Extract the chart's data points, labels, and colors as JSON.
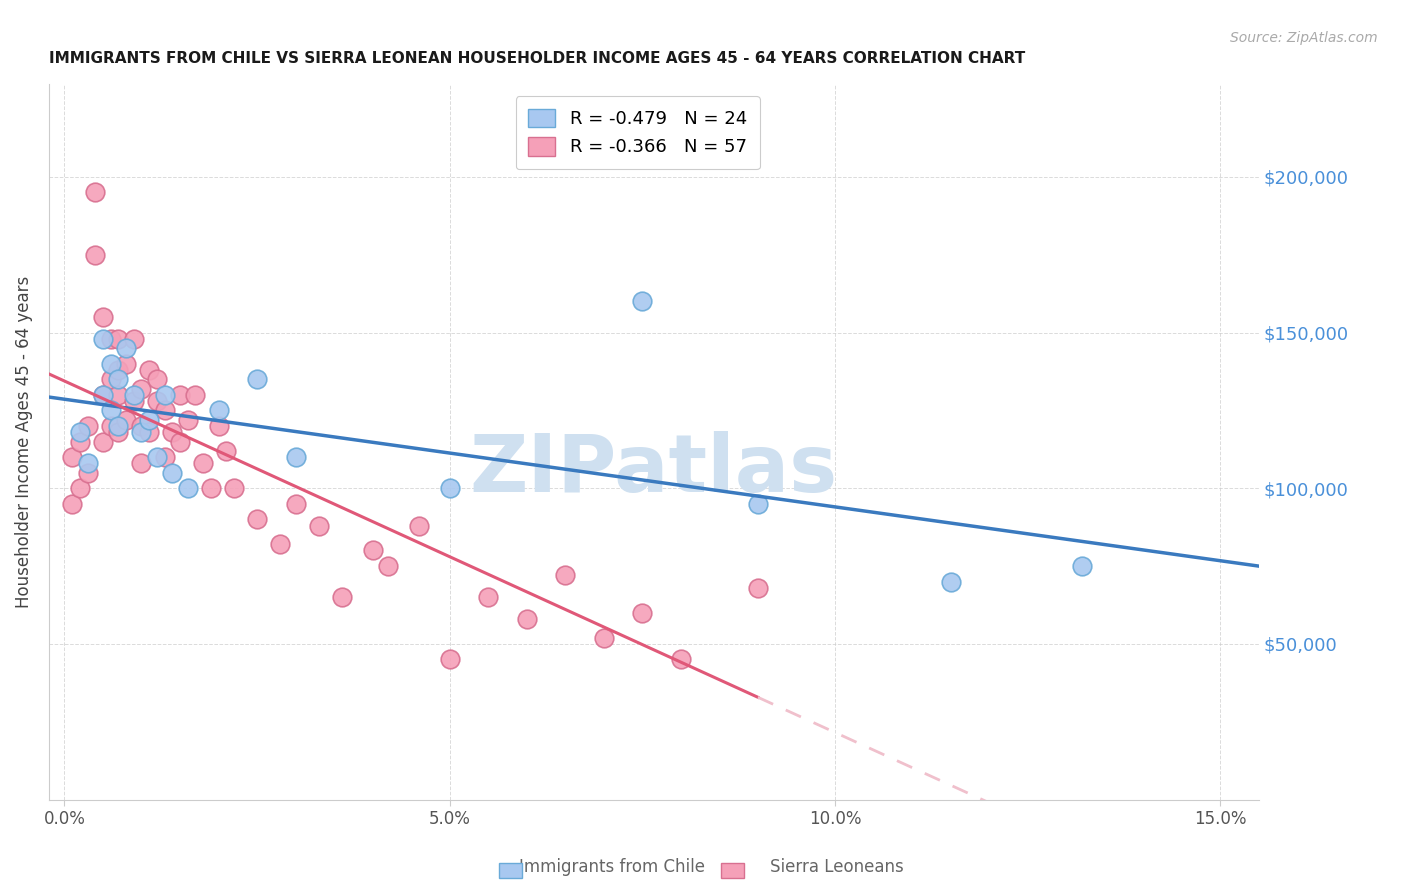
{
  "title": "IMMIGRANTS FROM CHILE VS SIERRA LEONEAN HOUSEHOLDER INCOME AGES 45 - 64 YEARS CORRELATION CHART",
  "source": "Source: ZipAtlas.com",
  "ylabel": "Householder Income Ages 45 - 64 years",
  "xlabel_ticks": [
    "0.0%",
    "5.0%",
    "10.0%",
    "15.0%"
  ],
  "xlabel_values": [
    0.0,
    0.05,
    0.1,
    0.15
  ],
  "ylabel_ticks": [
    "$50,000",
    "$100,000",
    "$150,000",
    "$200,000"
  ],
  "ylabel_values": [
    50000,
    100000,
    150000,
    200000
  ],
  "xlim": [
    -0.002,
    0.155
  ],
  "ylim": [
    0,
    230000
  ],
  "title_color": "#1a1a1a",
  "source_color": "#aaaaaa",
  "watermark": "ZIPatlas",
  "watermark_color": "#cfe0f0",
  "grid_color": "#cccccc",
  "right_tick_color": "#4a90d9",
  "chile_dot_color": "#a8c8f0",
  "chile_dot_edge": "#6aaad8",
  "sierra_dot_color": "#f5a0b8",
  "sierra_dot_edge": "#d87090",
  "chile_line_color": "#3a7abf",
  "sierra_line_color": "#e05878",
  "sierra_line_dashed_color": "#f0c0cc",
  "chile_scatter_x": [
    0.002,
    0.003,
    0.005,
    0.005,
    0.006,
    0.006,
    0.007,
    0.007,
    0.008,
    0.009,
    0.01,
    0.011,
    0.012,
    0.013,
    0.014,
    0.016,
    0.02,
    0.025,
    0.03,
    0.05,
    0.075,
    0.09,
    0.115,
    0.132
  ],
  "chile_scatter_y": [
    118000,
    108000,
    148000,
    130000,
    140000,
    125000,
    135000,
    120000,
    145000,
    130000,
    118000,
    122000,
    110000,
    130000,
    105000,
    100000,
    125000,
    135000,
    110000,
    100000,
    160000,
    95000,
    70000,
    75000
  ],
  "sierra_scatter_x": [
    0.001,
    0.001,
    0.002,
    0.002,
    0.003,
    0.003,
    0.004,
    0.004,
    0.005,
    0.005,
    0.005,
    0.006,
    0.006,
    0.006,
    0.007,
    0.007,
    0.007,
    0.007,
    0.008,
    0.008,
    0.009,
    0.009,
    0.01,
    0.01,
    0.01,
    0.011,
    0.011,
    0.012,
    0.012,
    0.013,
    0.013,
    0.014,
    0.015,
    0.015,
    0.016,
    0.017,
    0.018,
    0.019,
    0.02,
    0.021,
    0.022,
    0.025,
    0.028,
    0.03,
    0.033,
    0.036,
    0.04,
    0.042,
    0.046,
    0.05,
    0.055,
    0.06,
    0.065,
    0.07,
    0.075,
    0.08,
    0.09
  ],
  "sierra_scatter_y": [
    110000,
    95000,
    115000,
    100000,
    120000,
    105000,
    195000,
    175000,
    155000,
    130000,
    115000,
    148000,
    135000,
    120000,
    148000,
    138000,
    130000,
    118000,
    140000,
    122000,
    148000,
    128000,
    132000,
    120000,
    108000,
    138000,
    118000,
    135000,
    128000,
    125000,
    110000,
    118000,
    130000,
    115000,
    122000,
    130000,
    108000,
    100000,
    120000,
    112000,
    100000,
    90000,
    82000,
    95000,
    88000,
    65000,
    80000,
    75000,
    88000,
    45000,
    65000,
    58000,
    72000,
    52000,
    60000,
    45000,
    68000
  ]
}
